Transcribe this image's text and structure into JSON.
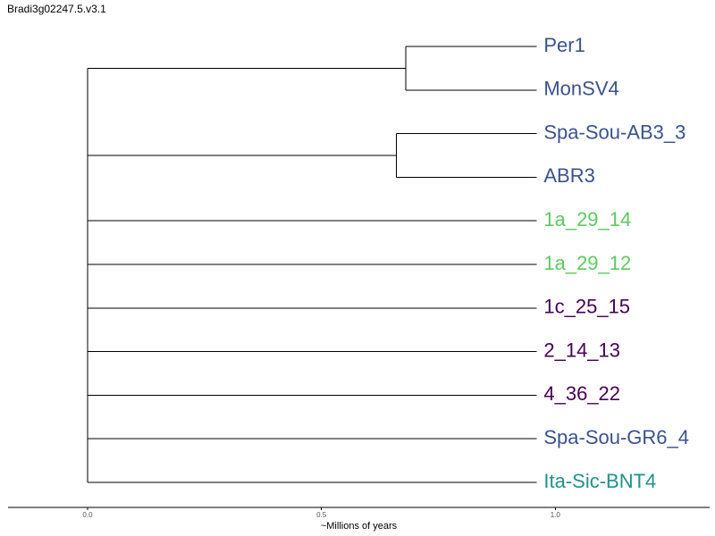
{
  "title": "Bradi3g02247.5.v3.1",
  "chart_data": {
    "type": "dendrogram",
    "xlabel": "~Millions of years",
    "x_ticks": [
      0.0,
      0.5,
      1.0
    ],
    "x_tick_labels": [
      "0.0",
      "0.5",
      "1.0"
    ],
    "xlim": [
      -0.17,
      1.33
    ],
    "leaves": [
      {
        "name": "Per1",
        "color": "#3b528b"
      },
      {
        "name": "MonSV4",
        "color": "#3b528b"
      },
      {
        "name": "Spa-Sou-AB3_3",
        "color": "#3b528b"
      },
      {
        "name": "ABR3",
        "color": "#3b528b"
      },
      {
        "name": "1a_29_14",
        "color": "#5ec962"
      },
      {
        "name": "1a_29_12",
        "color": "#5ec962"
      },
      {
        "name": "1c_25_15",
        "color": "#440154"
      },
      {
        "name": "2_14_13",
        "color": "#440154"
      },
      {
        "name": "4_36_22",
        "color": "#440154"
      },
      {
        "name": "Spa-Sou-GR6_4",
        "color": "#3b528b"
      },
      {
        "name": "Ita-Sic-BNT4",
        "color": "#21918c"
      }
    ],
    "leaf_depth": 0.96,
    "clades": [
      {
        "members": [
          0,
          1
        ],
        "node_x": 0.68
      },
      {
        "members": [
          2,
          3
        ],
        "node_x": 0.66
      }
    ],
    "root_x": 0.0
  }
}
